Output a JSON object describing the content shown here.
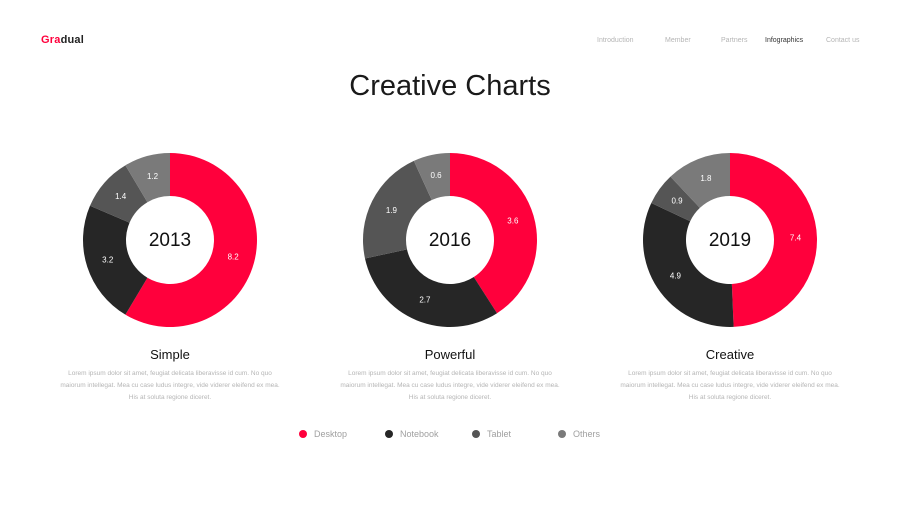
{
  "brand": {
    "part1": "Gra",
    "part2": "dual"
  },
  "nav": [
    {
      "label": "Introduction",
      "active": false
    },
    {
      "label": "Member",
      "active": false
    },
    {
      "label": "Partners",
      "active": false
    },
    {
      "label": "Infographics",
      "active": true
    },
    {
      "label": "Contact us",
      "active": false
    }
  ],
  "page_title": "Creative Charts",
  "colors": {
    "desktop": "#ff003c",
    "notebook": "#262626",
    "tablet": "#555555",
    "others": "#7a7a7a"
  },
  "panels": [
    {
      "title": "Simple",
      "desc": "Lorem ipsum dolor sit amet, feugiat delicata liberavisse id cum. No quo maiorum intellegat. Mea cu case ludus integre, vide viderer eleifend ex mea. His at soluta regione diceret."
    },
    {
      "title": "Powerful",
      "desc": "Lorem ipsum dolor sit amet, feugiat delicata liberavisse id cum. No quo maiorum intellegat. Mea cu case ludus integre, vide viderer eleifend ex mea. His at soluta regione diceret."
    },
    {
      "title": "Creative",
      "desc": "Lorem ipsum dolor sit amet, feugiat delicata liberavisse id cum. No quo maiorum intellegat. Mea cu case ludus integre, vide viderer eleifend ex mea. His at soluta regione diceret."
    }
  ],
  "chart_data": [
    {
      "type": "pie",
      "center_label": "2013",
      "categories": [
        "Desktop",
        "Notebook",
        "Tablet",
        "Others"
      ],
      "values": [
        8.2,
        3.2,
        1.4,
        1.2
      ]
    },
    {
      "type": "pie",
      "center_label": "2016",
      "categories": [
        "Desktop",
        "Notebook",
        "Tablet",
        "Others"
      ],
      "values": [
        3.6,
        2.7,
        1.9,
        0.6
      ]
    },
    {
      "type": "pie",
      "center_label": "2019",
      "categories": [
        "Desktop",
        "Notebook",
        "Tablet",
        "Others"
      ],
      "values": [
        7.4,
        4.9,
        0.9,
        1.8
      ]
    }
  ],
  "legend": [
    {
      "label": "Desktop",
      "color": "#ff003c"
    },
    {
      "label": "Notebook",
      "color": "#262626"
    },
    {
      "label": "Tablet",
      "color": "#555555"
    },
    {
      "label": "Others",
      "color": "#7a7a7a"
    }
  ]
}
